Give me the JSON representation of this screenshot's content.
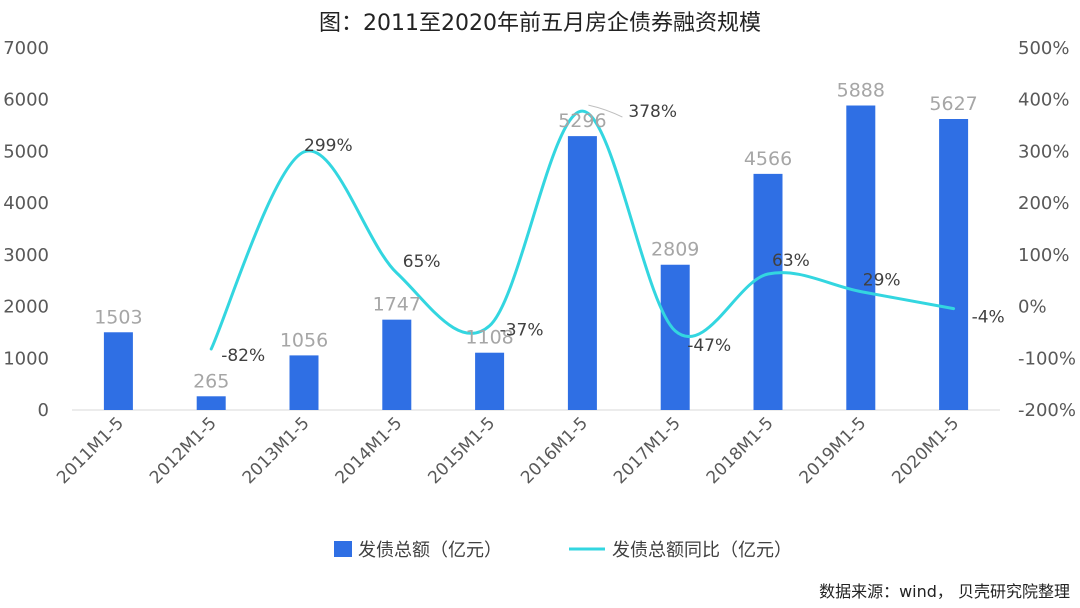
{
  "chart_data": {
    "type": "bar+line",
    "title": "图：2011至2020年前五月房企债券融资规模",
    "categories": [
      "2011M1-5",
      "2012M1-5",
      "2013M1-5",
      "2014M1-5",
      "2015M1-5",
      "2016M1-5",
      "2017M1-5",
      "2018M1-5",
      "2019M1-5",
      "2020M1-5"
    ],
    "series": [
      {
        "name": "发债总额（亿元）",
        "type": "bar",
        "axis": "left",
        "color": "#2f6fe4",
        "values": [
          1503,
          265,
          1056,
          1747,
          1108,
          5296,
          2809,
          4566,
          5888,
          5627
        ],
        "labels": [
          "1503",
          "265",
          "1056",
          "1747",
          "1108",
          "5296",
          "2809",
          "4566",
          "5888",
          "5627"
        ]
      },
      {
        "name": "发债总额同比（亿元）",
        "type": "line",
        "axis": "right",
        "color": "#33d6e0",
        "values": [
          null,
          -82,
          299,
          65,
          -37,
          378,
          -47,
          63,
          29,
          -4
        ],
        "labels": [
          "",
          "-82%",
          "299%",
          "65%",
          "-37%",
          "378%",
          "-47%",
          "63%",
          "29%",
          "-4%"
        ]
      }
    ],
    "y_left": {
      "min": 0,
      "max": 7000,
      "ticks": [
        "0",
        "1000",
        "2000",
        "3000",
        "4000",
        "5000",
        "6000",
        "7000"
      ]
    },
    "y_right": {
      "min": -200,
      "max": 500,
      "ticks": [
        "-200%",
        "-100%",
        "0%",
        "100%",
        "200%",
        "300%",
        "400%",
        "500%"
      ]
    },
    "grid": false,
    "legend_position": "bottom",
    "source": "数据来源：wind， 贝壳研究院整理"
  }
}
